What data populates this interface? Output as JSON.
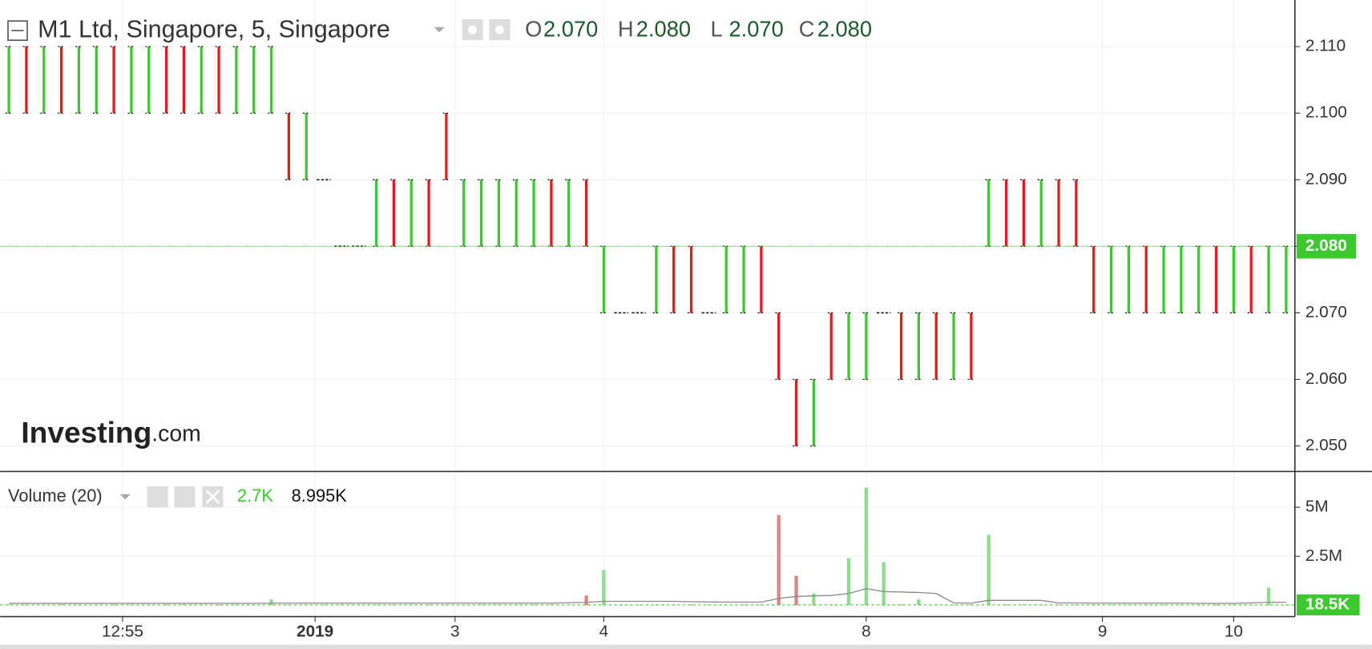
{
  "chart_data": [
    {
      "type": "candlestick",
      "title": "M1 Ltd, Singapore, 5, Singapore",
      "watermark": [
        "Investing",
        ".com"
      ],
      "ohlc": [
        {
          "name": "O",
          "value": 2.07,
          "label": "2.070"
        },
        {
          "name": "H",
          "value": 2.08,
          "label": "2.080"
        },
        {
          "name": "L",
          "value": 2.07,
          "label": "2.070"
        },
        {
          "name": "C",
          "value": 2.08,
          "label": "2.080"
        }
      ],
      "up_color": "#3cc82e",
      "down_color": "#e01c1c",
      "flat_color": "#1a1a1a",
      "open": [
        2.1,
        2.11,
        2.1,
        2.11,
        2.1,
        2.1,
        2.11,
        2.1,
        2.1,
        2.11,
        2.11,
        2.1,
        2.11,
        2.1,
        2.1,
        2.1,
        2.1,
        2.09,
        2.09,
        2.08,
        2.08,
        2.08,
        2.09,
        2.08,
        2.09,
        2.1,
        2.08,
        2.08,
        2.08,
        2.08,
        2.08,
        2.09,
        2.08,
        2.09,
        2.07,
        2.07,
        2.07,
        2.07,
        2.08,
        2.08,
        2.07,
        2.07,
        2.07,
        2.08,
        2.07,
        2.06,
        2.05,
        2.07,
        2.06,
        2.06,
        2.07,
        2.07,
        2.06,
        2.07,
        2.06,
        2.07,
        2.08,
        2.09,
        2.09,
        2.08,
        2.09,
        2.09,
        2.08,
        2.07,
        2.07,
        2.08,
        2.07,
        2.07,
        2.07,
        2.08,
        2.07,
        2.08,
        2.07,
        2.07
      ],
      "high": [
        2.11,
        2.11,
        2.11,
        2.11,
        2.11,
        2.11,
        2.11,
        2.11,
        2.11,
        2.11,
        2.11,
        2.11,
        2.11,
        2.11,
        2.11,
        2.11,
        2.1,
        2.1,
        2.09,
        2.08,
        2.08,
        2.09,
        2.09,
        2.09,
        2.09,
        2.1,
        2.09,
        2.09,
        2.09,
        2.09,
        2.09,
        2.09,
        2.09,
        2.09,
        2.08,
        2.07,
        2.07,
        2.08,
        2.08,
        2.08,
        2.07,
        2.08,
        2.08,
        2.08,
        2.07,
        2.06,
        2.06,
        2.07,
        2.07,
        2.07,
        2.07,
        2.07,
        2.07,
        2.07,
        2.07,
        2.07,
        2.09,
        2.09,
        2.09,
        2.09,
        2.09,
        2.09,
        2.08,
        2.08,
        2.08,
        2.08,
        2.08,
        2.08,
        2.08,
        2.08,
        2.08,
        2.08,
        2.08,
        2.08
      ],
      "low": [
        2.1,
        2.1,
        2.1,
        2.1,
        2.1,
        2.1,
        2.1,
        2.1,
        2.1,
        2.1,
        2.1,
        2.1,
        2.1,
        2.1,
        2.1,
        2.1,
        2.09,
        2.09,
        2.09,
        2.08,
        2.08,
        2.08,
        2.08,
        2.08,
        2.08,
        2.09,
        2.08,
        2.08,
        2.08,
        2.08,
        2.08,
        2.08,
        2.08,
        2.08,
        2.07,
        2.07,
        2.07,
        2.07,
        2.07,
        2.07,
        2.07,
        2.07,
        2.07,
        2.07,
        2.06,
        2.05,
        2.05,
        2.06,
        2.06,
        2.06,
        2.07,
        2.06,
        2.06,
        2.06,
        2.06,
        2.06,
        2.08,
        2.08,
        2.08,
        2.08,
        2.08,
        2.08,
        2.07,
        2.07,
        2.07,
        2.07,
        2.07,
        2.07,
        2.07,
        2.07,
        2.07,
        2.07,
        2.07,
        2.07
      ],
      "close": [
        2.11,
        2.1,
        2.11,
        2.1,
        2.11,
        2.11,
        2.1,
        2.11,
        2.11,
        2.1,
        2.1,
        2.11,
        2.1,
        2.11,
        2.11,
        2.11,
        2.09,
        2.1,
        2.09,
        2.08,
        2.08,
        2.09,
        2.08,
        2.09,
        2.08,
        2.09,
        2.09,
        2.09,
        2.09,
        2.09,
        2.09,
        2.08,
        2.09,
        2.08,
        2.08,
        2.07,
        2.07,
        2.08,
        2.07,
        2.07,
        2.07,
        2.08,
        2.08,
        2.07,
        2.06,
        2.05,
        2.06,
        2.06,
        2.07,
        2.07,
        2.07,
        2.06,
        2.07,
        2.06,
        2.07,
        2.06,
        2.09,
        2.08,
        2.08,
        2.09,
        2.08,
        2.08,
        2.07,
        2.08,
        2.08,
        2.07,
        2.08,
        2.08,
        2.08,
        2.07,
        2.08,
        2.07,
        2.08,
        2.08
      ],
      "xlim": [
        -0.5,
        73.5
      ],
      "xticks": [
        {
          "value": 6.5,
          "label": "12:55"
        },
        {
          "value": 17.5,
          "label": "2019"
        },
        {
          "value": 25.5,
          "label": "3"
        },
        {
          "value": 34,
          "label": "4"
        },
        {
          "value": 49,
          "label": "8"
        },
        {
          "value": 62.5,
          "label": "9"
        },
        {
          "value": 70,
          "label": "10"
        }
      ],
      "ylim": [
        2.0463,
        2.117
      ],
      "yticks": [
        {
          "value": 2.05,
          "label": "2.050"
        },
        {
          "value": 2.06,
          "label": "2.060"
        },
        {
          "value": 2.07,
          "label": "2.070"
        },
        {
          "value": 2.08,
          "label": "2.080"
        },
        {
          "value": 2.09,
          "label": "2.090"
        },
        {
          "value": 2.1,
          "label": "2.100"
        },
        {
          "value": 2.11,
          "label": "2.110"
        }
      ],
      "last_price": {
        "value": 2.08,
        "label": "2.080",
        "color": "#3cc82e"
      },
      "grid": true
    },
    {
      "type": "volume",
      "title": "Volume (20)",
      "legend_values": [
        {
          "value": 2700,
          "label": "2.7K",
          "color": "#3cc82e"
        },
        {
          "value": 8995,
          "label": "8.995K",
          "color": "#111111"
        }
      ],
      "up_color": "#8fdc8f",
      "down_color": "#e08585",
      "ma_color": "#888888",
      "values": [
        40000,
        40000,
        40000,
        40000,
        40000,
        40000,
        40000,
        40000,
        40000,
        40000,
        40000,
        40000,
        40000,
        40000,
        40000,
        300000,
        40000,
        40000,
        40000,
        40000,
        40000,
        40000,
        40000,
        40000,
        40000,
        40000,
        40000,
        40000,
        40000,
        40000,
        40000,
        40000,
        40000,
        500000,
        1800000,
        40000,
        40000,
        40000,
        40000,
        40000,
        40000,
        40000,
        40000,
        40000,
        4600000,
        1500000,
        600000,
        40000,
        2400000,
        6000000,
        2200000,
        40000,
        300000,
        40000,
        40000,
        40000,
        3600000,
        40000,
        40000,
        40000,
        40000,
        40000,
        40000,
        40000,
        40000,
        40000,
        40000,
        40000,
        40000,
        40000,
        40000,
        40000,
        900000,
        40000
      ],
      "ma_values": [
        100000,
        100000,
        100000,
        100000,
        100000,
        100000,
        100000,
        100000,
        100000,
        100000,
        100000,
        100000,
        100000,
        100000,
        100000,
        110000,
        110000,
        110000,
        110000,
        110000,
        110000,
        110000,
        110000,
        110000,
        110000,
        110000,
        110000,
        110000,
        110000,
        110000,
        110000,
        110000,
        130000,
        150000,
        200000,
        200000,
        200000,
        200000,
        200000,
        180000,
        170000,
        160000,
        160000,
        160000,
        350000,
        450000,
        480000,
        500000,
        600000,
        850000,
        700000,
        680000,
        650000,
        600000,
        120000,
        110000,
        250000,
        250000,
        250000,
        250000,
        120000,
        120000,
        110000,
        110000,
        110000,
        110000,
        110000,
        110000,
        100000,
        100000,
        100000,
        120000,
        150000,
        150000
      ],
      "xlim": [
        -0.5,
        73.5
      ],
      "ylim": [
        -580000,
        6740000
      ],
      "yticks": [
        {
          "value": 2500000,
          "label": "2.5M"
        },
        {
          "value": 5000000,
          "label": "5M"
        }
      ],
      "last_value": {
        "value": 18500,
        "label": "18.5K",
        "color": "#3cc82e"
      },
      "grid": true
    }
  ]
}
